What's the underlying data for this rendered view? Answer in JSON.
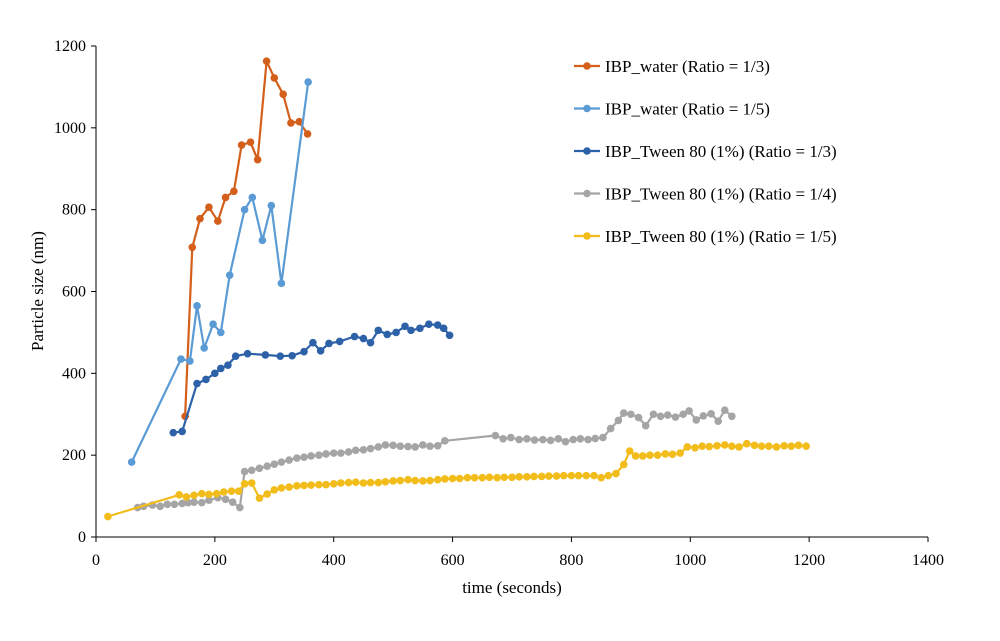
{
  "chart_data": {
    "type": "line",
    "title": "",
    "xlabel": "time (seconds)",
    "ylabel": "Particle size (nm)",
    "xlim": [
      0,
      1400
    ],
    "ylim": [
      0,
      1200
    ],
    "x_ticks": [
      0,
      200,
      400,
      600,
      800,
      1000,
      1200,
      1400
    ],
    "y_ticks": [
      0,
      200,
      400,
      600,
      800,
      1000,
      1200
    ],
    "grid": false,
    "legend_position": "top-right",
    "series": [
      {
        "name": "IBP_water (Ratio = 1/3)",
        "color": "#d35f1b",
        "points": [
          [
            150,
            295
          ],
          [
            162,
            708
          ],
          [
            175,
            778
          ],
          [
            190,
            806
          ],
          [
            205,
            772
          ],
          [
            218,
            830
          ],
          [
            232,
            845
          ],
          [
            245,
            958
          ],
          [
            260,
            965
          ],
          [
            272,
            922
          ],
          [
            287,
            1163
          ],
          [
            300,
            1122
          ],
          [
            315,
            1082
          ],
          [
            328,
            1012
          ],
          [
            342,
            1015
          ],
          [
            356,
            985
          ]
        ]
      },
      {
        "name": "IBP_water (Ratio = 1/5)",
        "color": "#5b9bd5",
        "points": [
          [
            60,
            183
          ],
          [
            143,
            435
          ],
          [
            158,
            430
          ],
          [
            170,
            565
          ],
          [
            182,
            462
          ],
          [
            197,
            520
          ],
          [
            210,
            500
          ],
          [
            225,
            640
          ],
          [
            250,
            800
          ],
          [
            263,
            830
          ],
          [
            280,
            725
          ],
          [
            295,
            810
          ],
          [
            312,
            620
          ],
          [
            357,
            1112
          ]
        ]
      },
      {
        "name": "IBP_Tween 80 (1%) (Ratio = 1/3)",
        "color": "#2e62a8",
        "points": [
          [
            130,
            255
          ],
          [
            145,
            258
          ],
          [
            170,
            375
          ],
          [
            185,
            385
          ],
          [
            200,
            400
          ],
          [
            210,
            412
          ],
          [
            222,
            420
          ],
          [
            235,
            442
          ],
          [
            255,
            448
          ],
          [
            285,
            445
          ],
          [
            310,
            442
          ],
          [
            330,
            443
          ],
          [
            350,
            453
          ],
          [
            365,
            475
          ],
          [
            378,
            455
          ],
          [
            392,
            473
          ],
          [
            410,
            478
          ],
          [
            435,
            490
          ],
          [
            450,
            485
          ],
          [
            462,
            475
          ],
          [
            475,
            505
          ],
          [
            490,
            495
          ],
          [
            505,
            500
          ],
          [
            520,
            515
          ],
          [
            530,
            505
          ],
          [
            545,
            510
          ],
          [
            560,
            520
          ],
          [
            575,
            518
          ],
          [
            585,
            510
          ],
          [
            595,
            493
          ]
        ]
      },
      {
        "name": "IBP_Tween 80 (1%) (Ratio = 1/4)",
        "color": "#a5a5a5",
        "points": [
          [
            70,
            72
          ],
          [
            80,
            75
          ],
          [
            95,
            78
          ],
          [
            108,
            75
          ],
          [
            120,
            80
          ],
          [
            132,
            80
          ],
          [
            145,
            82
          ],
          [
            155,
            84
          ],
          [
            165,
            85
          ],
          [
            178,
            84
          ],
          [
            190,
            90
          ],
          [
            205,
            96
          ],
          [
            218,
            92
          ],
          [
            230,
            85
          ],
          [
            242,
            72
          ],
          [
            250,
            160
          ],
          [
            262,
            163
          ],
          [
            275,
            168
          ],
          [
            288,
            173
          ],
          [
            300,
            178
          ],
          [
            312,
            183
          ],
          [
            325,
            188
          ],
          [
            338,
            193
          ],
          [
            350,
            195
          ],
          [
            362,
            198
          ],
          [
            375,
            200
          ],
          [
            387,
            203
          ],
          [
            400,
            205
          ],
          [
            412,
            205
          ],
          [
            425,
            208
          ],
          [
            437,
            212
          ],
          [
            450,
            213
          ],
          [
            462,
            216
          ],
          [
            475,
            220
          ],
          [
            487,
            225
          ],
          [
            500,
            224
          ],
          [
            512,
            222
          ],
          [
            525,
            221
          ],
          [
            537,
            220
          ],
          [
            550,
            225
          ],
          [
            562,
            222
          ],
          [
            575,
            223
          ],
          [
            587,
            235
          ],
          [
            672,
            248
          ],
          [
            685,
            240
          ],
          [
            698,
            243
          ],
          [
            712,
            238
          ],
          [
            725,
            240
          ],
          [
            738,
            237
          ],
          [
            752,
            238
          ],
          [
            765,
            236
          ],
          [
            778,
            240
          ],
          [
            790,
            233
          ],
          [
            803,
            238
          ],
          [
            815,
            240
          ],
          [
            828,
            238
          ],
          [
            840,
            241
          ],
          [
            853,
            243
          ],
          [
            866,
            265
          ],
          [
            879,
            285
          ],
          [
            888,
            303
          ],
          [
            900,
            300
          ],
          [
            913,
            292
          ],
          [
            925,
            272
          ],
          [
            938,
            300
          ],
          [
            950,
            295
          ],
          [
            962,
            298
          ],
          [
            975,
            293
          ],
          [
            988,
            300
          ],
          [
            998,
            308
          ],
          [
            1010,
            286
          ],
          [
            1022,
            296
          ],
          [
            1035,
            301
          ],
          [
            1047,
            283
          ],
          [
            1058,
            310
          ],
          [
            1070,
            295
          ]
        ]
      },
      {
        "name": "IBP_Tween 80 (1%) (Ratio = 1/5)",
        "color": "#f2bd1b",
        "points": [
          [
            20,
            50
          ],
          [
            140,
            103
          ],
          [
            152,
            98
          ],
          [
            165,
            102
          ],
          [
            178,
            106
          ],
          [
            190,
            104
          ],
          [
            203,
            106
          ],
          [
            215,
            110
          ],
          [
            228,
            112
          ],
          [
            240,
            112
          ],
          [
            250,
            130
          ],
          [
            262,
            132
          ],
          [
            275,
            95
          ],
          [
            288,
            105
          ],
          [
            300,
            115
          ],
          [
            312,
            120
          ],
          [
            325,
            122
          ],
          [
            338,
            125
          ],
          [
            350,
            126
          ],
          [
            362,
            127
          ],
          [
            375,
            128
          ],
          [
            387,
            128
          ],
          [
            400,
            130
          ],
          [
            412,
            132
          ],
          [
            425,
            133
          ],
          [
            437,
            134
          ],
          [
            450,
            132
          ],
          [
            462,
            133
          ],
          [
            475,
            133
          ],
          [
            487,
            135
          ],
          [
            500,
            137
          ],
          [
            512,
            138
          ],
          [
            525,
            140
          ],
          [
            537,
            138
          ],
          [
            550,
            137
          ],
          [
            562,
            138
          ],
          [
            575,
            140
          ],
          [
            587,
            142
          ],
          [
            600,
            143
          ],
          [
            612,
            143
          ],
          [
            625,
            145
          ],
          [
            637,
            145
          ],
          [
            650,
            145
          ],
          [
            662,
            146
          ],
          [
            675,
            145
          ],
          [
            687,
            146
          ],
          [
            700,
            146
          ],
          [
            712,
            147
          ],
          [
            725,
            147
          ],
          [
            737,
            148
          ],
          [
            750,
            148
          ],
          [
            762,
            149
          ],
          [
            775,
            149
          ],
          [
            787,
            150
          ],
          [
            800,
            150
          ],
          [
            812,
            150
          ],
          [
            825,
            150
          ],
          [
            838,
            150
          ],
          [
            850,
            145
          ],
          [
            862,
            150
          ],
          [
            875,
            155
          ],
          [
            888,
            177
          ],
          [
            898,
            210
          ],
          [
            908,
            198
          ],
          [
            920,
            198
          ],
          [
            932,
            200
          ],
          [
            945,
            200
          ],
          [
            958,
            203
          ],
          [
            970,
            202
          ],
          [
            983,
            205
          ],
          [
            995,
            220
          ],
          [
            1008,
            218
          ],
          [
            1020,
            222
          ],
          [
            1032,
            221
          ],
          [
            1045,
            223
          ],
          [
            1058,
            225
          ],
          [
            1070,
            222
          ],
          [
            1082,
            220
          ],
          [
            1095,
            228
          ],
          [
            1108,
            224
          ],
          [
            1120,
            222
          ],
          [
            1132,
            222
          ],
          [
            1145,
            220
          ],
          [
            1158,
            223
          ],
          [
            1170,
            222
          ],
          [
            1182,
            224
          ],
          [
            1195,
            222
          ]
        ]
      }
    ]
  }
}
